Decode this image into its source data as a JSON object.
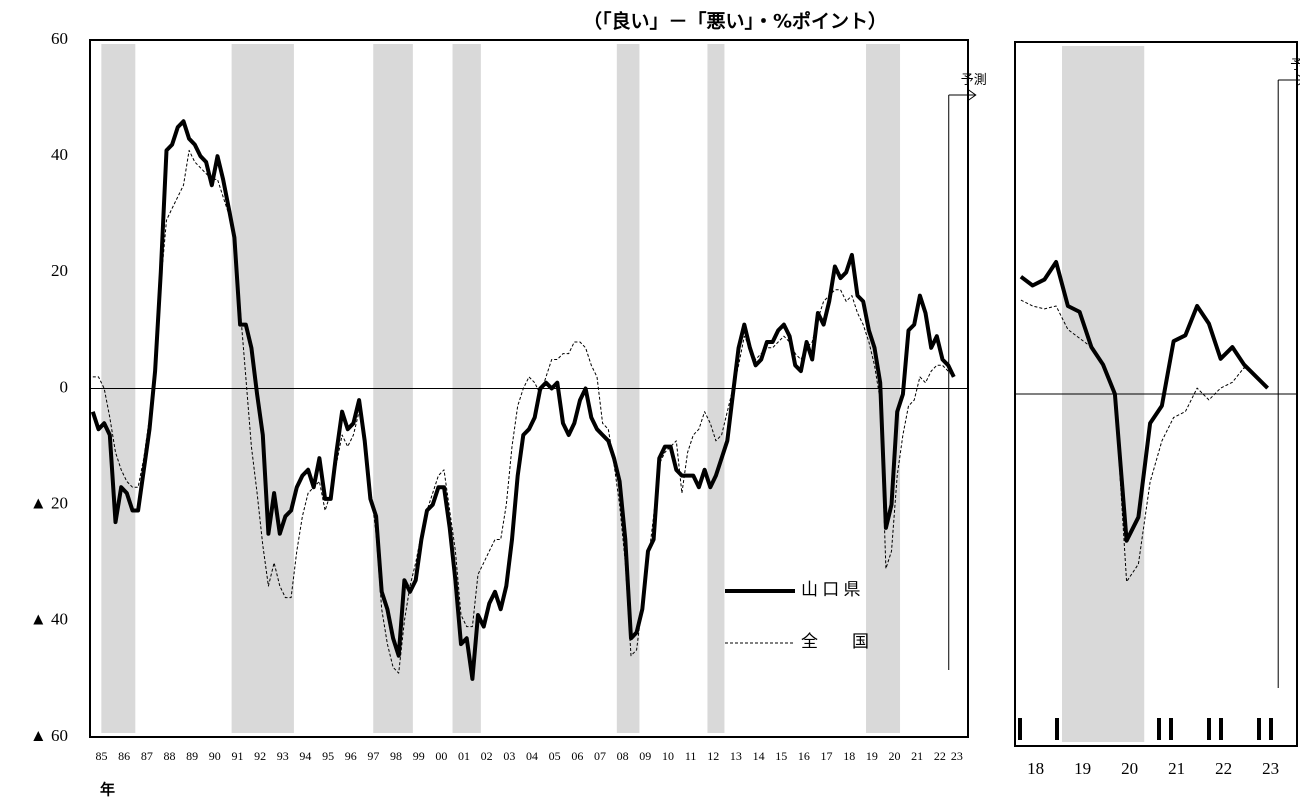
{
  "chart_data": [
    {
      "type": "line",
      "unit_label": "（「良い」－「悪い」・%ポイント）",
      "x_axis_label": "年",
      "forecast_label": "予測",
      "forecast_x": 2022.9,
      "legend": "lower-right",
      "xlim": [
        1985,
        2023.75
      ],
      "ylim": [
        -60,
        60
      ],
      "yticks": [
        60,
        40,
        20,
        0,
        {
          "value": -20,
          "label": "▲ 20"
        },
        {
          "value": -40,
          "label": "▲ 40"
        },
        {
          "value": -60,
          "label": "▲ 60"
        }
      ],
      "shaded": [
        [
          1985.5,
          1987
        ],
        [
          1991.25,
          1994
        ],
        [
          1997.5,
          1999.25
        ],
        [
          2001,
          2002.25
        ],
        [
          2008.25,
          2009.25
        ],
        [
          2012.25,
          2013
        ],
        [
          2019.25,
          2020.75
        ]
      ],
      "categories": [
        null,
        "85",
        null,
        null,
        null,
        "86",
        null,
        null,
        null,
        "87",
        null,
        null,
        null,
        "88",
        null,
        null,
        null,
        "89",
        null,
        null,
        null,
        "90",
        null,
        null,
        null,
        "91",
        null,
        null,
        null,
        "92",
        null,
        null,
        null,
        "93",
        null,
        null,
        null,
        "94",
        null,
        null,
        null,
        "95",
        null,
        null,
        null,
        "96",
        null,
        null,
        null,
        "97",
        null,
        null,
        null,
        "98",
        null,
        null,
        null,
        "99",
        null,
        null,
        null,
        "00",
        null,
        null,
        null,
        "01",
        null,
        null,
        null,
        "02",
        null,
        null,
        null,
        "03",
        null,
        null,
        null,
        "04",
        null,
        null,
        null,
        "05",
        null,
        null,
        null,
        "06",
        null,
        null,
        null,
        "07",
        null,
        null,
        null,
        "08",
        null,
        null,
        null,
        "09",
        null,
        null,
        null,
        "10",
        null,
        null,
        null,
        "11",
        null,
        null,
        null,
        "12",
        null,
        null,
        null,
        "13",
        null,
        null,
        null,
        "14",
        null,
        null,
        null,
        "15",
        null,
        null,
        null,
        "16",
        null,
        null,
        null,
        "17",
        null,
        null,
        null,
        "18",
        null,
        null,
        null,
        "19",
        null,
        null,
        null,
        "20",
        null,
        null,
        null,
        "21",
        null,
        null,
        null,
        "22",
        null,
        null,
        "23"
      ],
      "series": [
        {
          "name": "山 口 県",
          "color": "#000000",
          "dashed": false,
          "values": [
            -4,
            -7,
            -6,
            -8,
            -23,
            -17,
            -18,
            -21,
            -21,
            -14,
            -7,
            3,
            20,
            41,
            42,
            45,
            46,
            43,
            42,
            40,
            39,
            35,
            40,
            36,
            31,
            26,
            11,
            11,
            7,
            -1,
            -8,
            -25,
            -18,
            -25,
            -22,
            -21,
            -17,
            -15,
            -14,
            -17,
            -12,
            -19,
            -19,
            -11,
            -4,
            -7,
            -6,
            -2,
            -9,
            -19,
            -22,
            -35,
            -38,
            -43,
            -46,
            -33,
            -35,
            -33,
            -26,
            -21,
            -20,
            -17,
            -17,
            -24,
            -33,
            -44,
            -43,
            -50,
            -39,
            -41,
            -37,
            -35,
            -38,
            -34,
            -26,
            -15,
            -8,
            -7,
            -5,
            0,
            1,
            0,
            1,
            -6,
            -8,
            -6,
            -2,
            0,
            -5,
            -7,
            -8,
            -9,
            -12,
            -16,
            -26,
            -43,
            -42,
            -38,
            -28,
            -26,
            -12,
            -10,
            -10,
            -14,
            -15,
            -15,
            -15,
            -17,
            -14,
            -17,
            -15,
            -12,
            -9,
            -1,
            7,
            11,
            7,
            4,
            5,
            8,
            8,
            10,
            11,
            9,
            4,
            3,
            8,
            5,
            13,
            11,
            15,
            21,
            19,
            20,
            23,
            16,
            15,
            10,
            7,
            1,
            -24,
            -20,
            -4,
            -1,
            10,
            11,
            16,
            13,
            7,
            9,
            5,
            4,
            2
          ]
        },
        {
          "name": "全　　国",
          "color": "#000000",
          "dashed": true,
          "values": [
            2,
            2,
            0,
            -5,
            -11,
            -14,
            -16,
            -17,
            -17,
            -12,
            -5,
            5,
            18,
            29,
            31,
            33,
            35,
            41,
            39,
            38,
            37,
            36,
            36,
            33,
            30,
            27,
            14,
            2,
            -10,
            -18,
            -27,
            -34,
            -30,
            -34,
            -36,
            -36,
            -28,
            -22,
            -18,
            -17,
            -16,
            -21,
            -18,
            -13,
            -8,
            -10,
            -8,
            -4,
            -9,
            -17,
            -25,
            -38,
            -44,
            -48,
            -49,
            -40,
            -34,
            -30,
            -25,
            -21,
            -18,
            -15,
            -14,
            -21,
            -28,
            -39,
            -41,
            -41,
            -32,
            -30,
            -28,
            -26,
            -26,
            -20,
            -10,
            -3,
            0,
            2,
            1,
            -1,
            2,
            5,
            5,
            6,
            6,
            8,
            8,
            7,
            4,
            2,
            -6,
            -7,
            -13,
            -20,
            -30,
            -46,
            -45,
            -37,
            -30,
            -22,
            -13,
            -11,
            -10,
            -9,
            -18,
            -11,
            -8,
            -7,
            -4,
            -6,
            -9,
            -8,
            -4,
            0,
            4,
            9,
            7,
            5,
            6,
            7,
            7,
            8,
            9,
            8,
            6,
            5,
            7,
            8,
            12,
            15,
            16,
            17,
            17,
            15,
            16,
            13,
            11,
            8,
            4,
            -2,
            -31,
            -28,
            -15,
            -8,
            -3,
            -2,
            2,
            1,
            3,
            4,
            4,
            3,
            2
          ]
        }
      ]
    },
    {
      "type": "line",
      "forecast_label": "予測",
      "forecast_x": 2023.6,
      "xlim": [
        2018,
        2024
      ],
      "ylim": [
        -60,
        60
      ],
      "shaded": [
        [
          2019,
          2020.75
        ]
      ],
      "categories": [
        null,
        "18",
        null,
        null,
        null,
        "19",
        null,
        null,
        null,
        "20",
        null,
        null,
        null,
        "21",
        null,
        null,
        null,
        "22",
        null,
        null,
        null,
        "23"
      ],
      "series": [
        {
          "color": "#000000",
          "dashed": false,
          "values": [
            20,
            18.5,
            19.5,
            22.5,
            15,
            14,
            8,
            5,
            0,
            -25,
            -21,
            -5,
            -2,
            9,
            10,
            15,
            12,
            6,
            8,
            5,
            3,
            1
          ]
        },
        {
          "color": "#000000",
          "dashed": true,
          "values": [
            16,
            15,
            14.5,
            15,
            11,
            9.5,
            8,
            5,
            0,
            -32,
            -29,
            -15,
            -8,
            -4,
            -3,
            1,
            -1,
            1,
            2,
            4.5,
            3,
            1
          ]
        }
      ]
    }
  ]
}
